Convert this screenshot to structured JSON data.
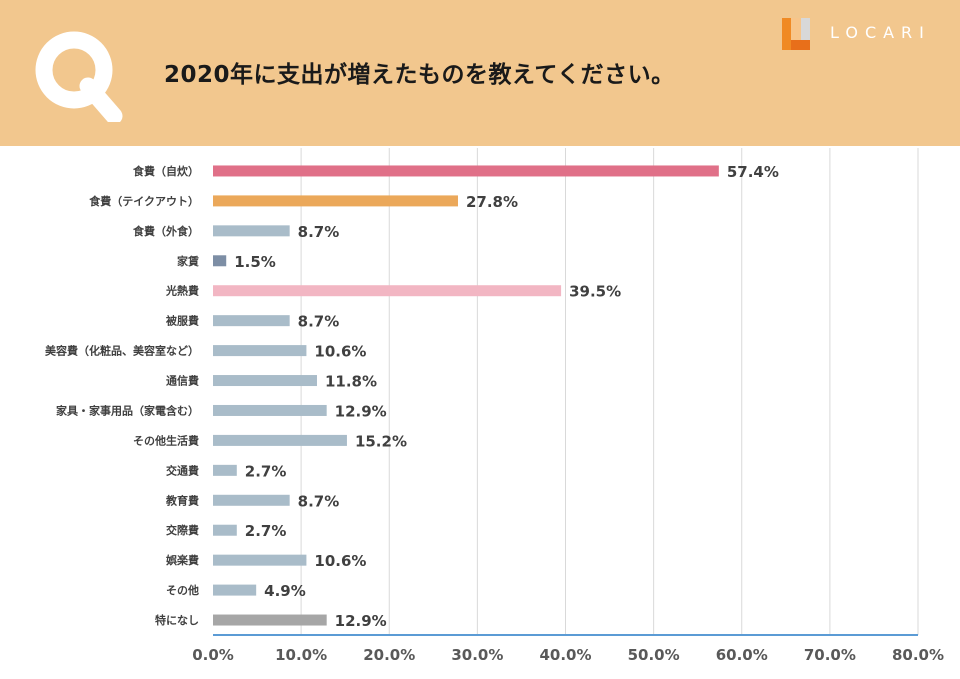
{
  "header": {
    "q_letter": "Q",
    "title": "2020年に支出が増えたものを教えてください。",
    "logo_text": "LOCARI",
    "background_color": "#f2c78e"
  },
  "chart_data": {
    "type": "bar",
    "orientation": "horizontal",
    "categories": [
      "食費（自炊）",
      "食費（テイクアウト）",
      "食費（外食）",
      "家賃",
      "光熱費",
      "被服費",
      "美容費（化粧品、美容室など）",
      "通信費",
      "家具・家事用品（家電含む）",
      "その他生活費",
      "交通費",
      "教育費",
      "交際費",
      "娯楽費",
      "その他",
      "特になし"
    ],
    "values": [
      57.4,
      27.8,
      8.7,
      1.5,
      39.5,
      8.7,
      10.6,
      11.8,
      12.9,
      15.2,
      2.7,
      8.7,
      2.7,
      10.6,
      4.9,
      12.9
    ],
    "value_labels": [
      "57.4%",
      "27.8%",
      "8.7%",
      "1.5%",
      "39.5%",
      "8.7%",
      "10.6%",
      "11.8%",
      "12.9%",
      "15.2%",
      "2.7%",
      "8.7%",
      "2.7%",
      "10.6%",
      "4.9%",
      "12.9%"
    ],
    "colors": [
      "#e07088",
      "#eba85a",
      "#a9bcc9",
      "#7d8ea5",
      "#f2b6c3",
      "#a9bcc9",
      "#a9bcc9",
      "#a9bcc9",
      "#a9bcc9",
      "#a9bcc9",
      "#a9bcc9",
      "#a9bcc9",
      "#a9bcc9",
      "#a9bcc9",
      "#a9bcc9",
      "#a6a6a6"
    ],
    "xlim": [
      0,
      80
    ],
    "x_ticks": [
      0,
      10,
      20,
      30,
      40,
      50,
      60,
      70,
      80
    ],
    "x_tick_labels": [
      "0.0%",
      "10.0%",
      "20.0%",
      "30.0%",
      "40.0%",
      "50.0%",
      "60.0%",
      "70.0%",
      "80.0%"
    ],
    "grid": true,
    "axis_color": "#5b9bd5",
    "grid_color": "#d9d9d9",
    "title": "2020年に支出が増えたものを教えてください。",
    "xlabel": "",
    "ylabel": ""
  }
}
